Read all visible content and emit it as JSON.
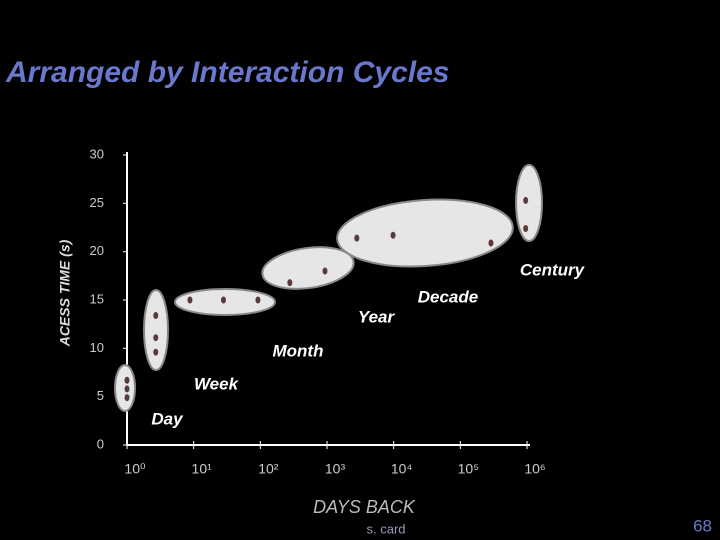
{
  "chart_data": {
    "type": "scatter",
    "title": "Arranged by  Interaction Cycles",
    "x_label": "DAYS BACK",
    "y_label": "ACESS TIME (s)",
    "log_x": true,
    "x": [
      1,
      1,
      1,
      2.7,
      2.7,
      2.7,
      8.8,
      28,
      92,
      277,
      933,
      2800,
      9800,
      288000,
      955000,
      955000
    ],
    "values": [
      6.7,
      5.8,
      4.9,
      13.4,
      11.1,
      9.6,
      15,
      15,
      15,
      16.8,
      18,
      21.4,
      21.7,
      20.9,
      25.3,
      22.4
    ],
    "color": "#5a3a3a",
    "xlim": [
      1,
      1000000
    ],
    "xticks": [
      {
        "value": 1,
        "label": "10⁰"
      },
      {
        "value": 10,
        "label": "10¹"
      },
      {
        "value": 100,
        "label": "10²"
      },
      {
        "value": 1000,
        "label": "10³"
      },
      {
        "value": 10000,
        "label": "10⁴"
      },
      {
        "value": 100000,
        "label": "10⁵"
      },
      {
        "value": 1000000,
        "label": "10⁶"
      }
    ],
    "ylim": [
      0,
      30
    ],
    "yticks": [
      0,
      5,
      10,
      15,
      20,
      25,
      30
    ],
    "annotations": [
      "Day",
      "Week",
      "Month",
      "Year",
      "Decade",
      "Century"
    ]
  },
  "footer": {
    "author": "s. card",
    "page": "68"
  }
}
